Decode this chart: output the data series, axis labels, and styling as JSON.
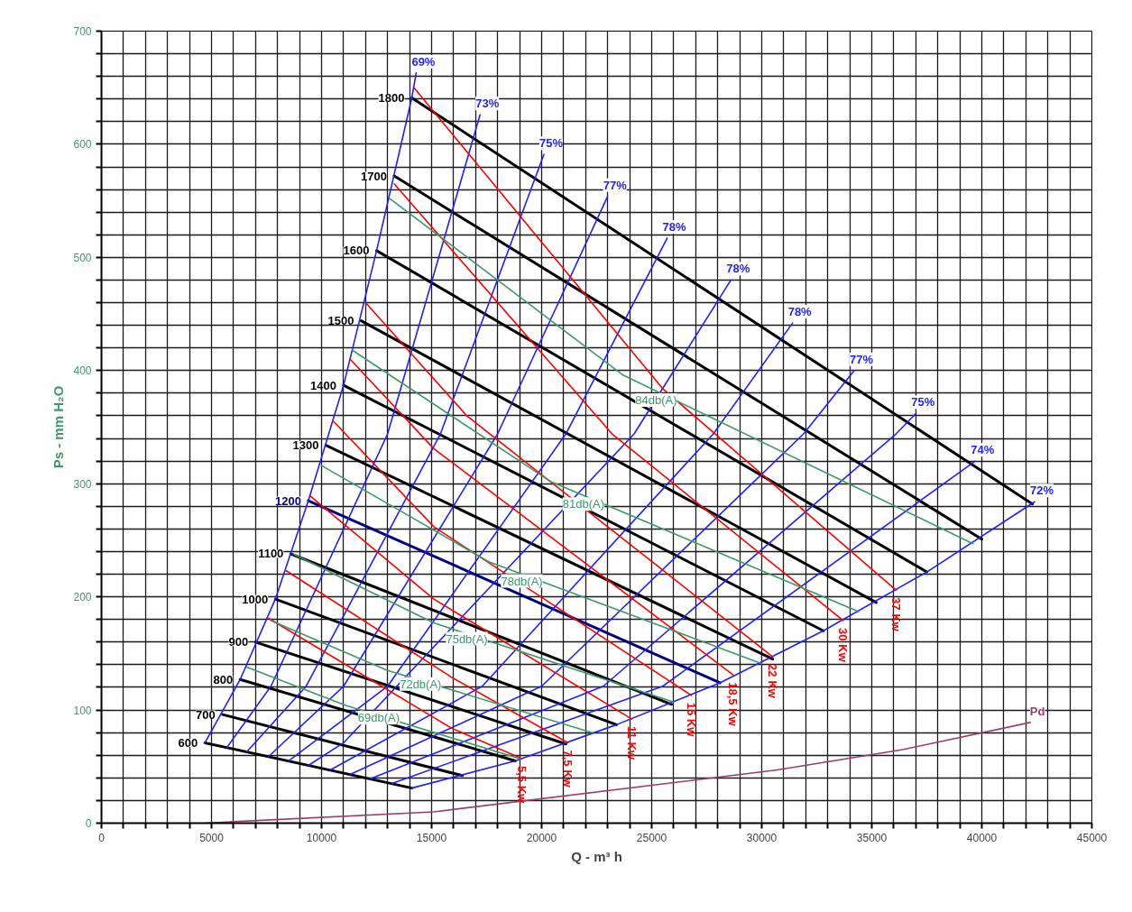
{
  "chart_data": {
    "type": "line",
    "xlabel": "Q - m³ h",
    "ylabel": "Ps - mm H₂O",
    "xlim": [
      0,
      45000
    ],
    "ylim": [
      0,
      700
    ],
    "xticks": [
      0,
      {
        "value": 1000,
        "label": null
      },
      {
        "value": 2000,
        "label": null
      },
      {
        "value": 3000,
        "label": null
      },
      {
        "value": 4000,
        "label": null
      },
      5000,
      {
        "value": 6000,
        "label": null
      },
      {
        "value": 7000,
        "label": null
      },
      {
        "value": 8000,
        "label": null
      },
      {
        "value": 9000,
        "label": null
      },
      10000,
      {
        "value": 11000,
        "label": null
      },
      {
        "value": 12000,
        "label": null
      },
      {
        "value": 13000,
        "label": null
      },
      {
        "value": 14000,
        "label": null
      },
      15000,
      {
        "value": 16000,
        "label": null
      },
      {
        "value": 17000,
        "label": null
      },
      {
        "value": 18000,
        "label": null
      },
      {
        "value": 19000,
        "label": null
      },
      20000,
      {
        "value": 21000,
        "label": null
      },
      {
        "value": 22000,
        "label": null
      },
      {
        "value": 23000,
        "label": null
      },
      {
        "value": 24000,
        "label": null
      },
      25000,
      {
        "value": 26000,
        "label": null
      },
      {
        "value": 27000,
        "label": null
      },
      {
        "value": 28000,
        "label": null
      },
      {
        "value": 29000,
        "label": null
      },
      30000,
      {
        "value": 31000,
        "label": null
      },
      {
        "value": 32000,
        "label": null
      },
      {
        "value": 33000,
        "label": null
      },
      {
        "value": 34000,
        "label": null
      },
      35000,
      {
        "value": 36000,
        "label": null
      },
      {
        "value": 37000,
        "label": null
      },
      {
        "value": 38000,
        "label": null
      },
      {
        "value": 39000,
        "label": null
      },
      40000,
      {
        "value": 41000,
        "label": null
      },
      {
        "value": 42000,
        "label": null
      },
      {
        "value": 43000,
        "label": null
      },
      {
        "value": 44000,
        "label": null
      },
      45000
    ],
    "yticks": [
      0,
      {
        "value": 20,
        "label": null
      },
      {
        "value": 40,
        "label": null
      },
      {
        "value": 60,
        "label": null
      },
      {
        "value": 80,
        "label": null
      },
      100,
      {
        "value": 120,
        "label": null
      },
      {
        "value": 140,
        "label": null
      },
      {
        "value": 160,
        "label": null
      },
      {
        "value": 180,
        "label": null
      },
      200,
      {
        "value": 220,
        "label": null
      },
      {
        "value": 240,
        "label": null
      },
      {
        "value": 260,
        "label": null
      },
      {
        "value": 280,
        "label": null
      },
      300,
      {
        "value": 320,
        "label": null
      },
      {
        "value": 340,
        "label": null
      },
      {
        "value": 360,
        "label": null
      },
      {
        "value": 380,
        "label": null
      },
      400,
      {
        "value": 420,
        "label": null
      },
      {
        "value": 440,
        "label": null
      },
      {
        "value": 460,
        "label": null
      },
      {
        "value": 480,
        "label": null
      },
      500,
      {
        "value": 520,
        "label": null
      },
      {
        "value": 540,
        "label": null
      },
      {
        "value": 560,
        "label": null
      },
      {
        "value": 580,
        "label": null
      },
      600,
      {
        "value": 620,
        "label": null
      },
      {
        "value": 640,
        "label": null
      },
      {
        "value": 660,
        "label": null
      },
      {
        "value": 680,
        "label": null
      },
      700
    ],
    "grid": true,
    "series": [
      {
        "name": "600",
        "color": "#000000",
        "x": [
          4700,
          14100
        ],
        "values": [
          71,
          31
        ]
      },
      {
        "name": "700",
        "color": "#000000",
        "x": [
          5500,
          16400
        ],
        "values": [
          96,
          42
        ]
      },
      {
        "name": "800",
        "color": "#000000",
        "x": [
          6300,
          18800
        ],
        "values": [
          127,
          55
        ]
      },
      {
        "name": "900",
        "color": "#000000",
        "x": [
          7000,
          21100
        ],
        "values": [
          160,
          70
        ]
      },
      {
        "name": "1000",
        "color": "#000000",
        "x": [
          7900,
          23400
        ],
        "values": [
          198,
          87
        ]
      },
      {
        "name": "1100",
        "color": "#000000",
        "x": [
          8600,
          25900
        ],
        "values": [
          238,
          105
        ]
      },
      {
        "name": "1200",
        "color": "#000080",
        "x": [
          9400,
          28100
        ],
        "values": [
          285,
          124
        ]
      },
      {
        "name": "1300",
        "color": "#000000",
        "x": [
          10200,
          30500
        ],
        "values": [
          334,
          145
        ]
      },
      {
        "name": "1400",
        "color": "#000000",
        "x": [
          11000,
          32800
        ],
        "values": [
          387,
          170
        ]
      },
      {
        "name": "1500",
        "color": "#000000",
        "x": [
          11800,
          35200
        ],
        "values": [
          444,
          195
        ]
      },
      {
        "name": "1600",
        "color": "#000000",
        "x": [
          12500,
          37500
        ],
        "values": [
          506,
          222
        ]
      },
      {
        "name": "1700",
        "color": "#000000",
        "x": [
          13300,
          40000
        ],
        "values": [
          572,
          251
        ]
      },
      {
        "name": "1800",
        "color": "#000000",
        "x": [
          14100,
          42300
        ],
        "values": [
          641,
          282
        ]
      },
      {
        "name": "69%",
        "color": "#1f1fff",
        "x": [
          4700,
          6300,
          7900,
          9400,
          11000,
          12500,
          14100,
          14300
        ],
        "values": [
          71,
          127,
          198,
          285,
          387,
          506,
          641,
          663
        ]
      },
      {
        "name": "73%",
        "color": "#1f1fff",
        "x": [
          5700,
          7700,
          13000,
          17200
        ],
        "values": [
          67,
          121,
          344,
          626
        ]
      },
      {
        "name": "75%",
        "color": "#1f1fff",
        "x": [
          6600,
          9300,
          15400,
          20100
        ],
        "values": [
          63,
          121,
          344,
          591
        ]
      },
      {
        "name": "77%",
        "color": "#1f1fff",
        "x": [
          7600,
          11000,
          18000,
          23000
        ],
        "values": [
          59,
          121,
          344,
          554
        ]
      },
      {
        "name": "78%",
        "color": "#1f1fff",
        "x": [
          8500,
          13000,
          21100,
          25700
        ],
        "values": [
          55,
          121,
          344,
          517
        ]
      },
      {
        "name": "78%",
        "color": "#1f1fff",
        "x": [
          9400,
          11000,
          24200,
          28600
        ],
        "values": [
          51,
          71,
          344,
          480
        ]
      },
      {
        "name": "78%",
        "color": "#1f1fff",
        "x": [
          10400,
          17300,
          27800,
          31400
        ],
        "values": [
          47,
          121,
          344,
          442
        ]
      },
      {
        "name": "77%",
        "color": "#1f1fff",
        "x": [
          11300,
          20000,
          31900,
          34200
        ],
        "values": [
          43,
          121,
          344,
          400
        ]
      },
      {
        "name": "75%",
        "color": "#1f1fff",
        "x": [
          12200,
          22800,
          36100,
          37000
        ],
        "values": [
          39,
          121,
          344,
          362
        ]
      },
      {
        "name": "74%",
        "color": "#1f1fff",
        "x": [
          13200,
          25500,
          39700
        ],
        "values": [
          35,
          121,
          320
        ]
      },
      {
        "name": "72%",
        "color": "#1f1fff",
        "x": [
          14100,
          18800,
          23400,
          28100,
          32800,
          37500,
          42400
        ],
        "values": [
          31,
          55,
          87,
          124,
          170,
          222,
          284
        ]
      },
      {
        "name": "5,5 Kw",
        "color": "#ff0000",
        "x": [
          7600,
          15900,
          19100
        ],
        "values": [
          181,
          84,
          57
        ]
      },
      {
        "name": "7,5 Kw",
        "color": "#ff0000",
        "x": [
          8400,
          15900,
          21200
        ],
        "values": [
          223,
          129,
          71
        ]
      },
      {
        "name": "11 Kw",
        "color": "#ff0000",
        "x": [
          9500,
          15100,
          24100
        ],
        "values": [
          289,
          198,
          92
        ]
      },
      {
        "name": "15 Kw",
        "color": "#ff0000",
        "x": [
          10500,
          15100,
          26800
        ],
        "values": [
          356,
          262,
          113
        ]
      },
      {
        "name": "18,5 Kw",
        "color": "#ff0000",
        "x": [
          11300,
          15100,
          28700
        ],
        "values": [
          410,
          331,
          131
        ]
      },
      {
        "name": "22 Kw",
        "color": "#ff0000",
        "x": [
          12000,
          16600,
          30500
        ],
        "values": [
          460,
          360,
          147
        ]
      },
      {
        "name": "30 Kw",
        "color": "#ff0000",
        "x": [
          13300,
          23200,
          33700
        ],
        "values": [
          565,
          344,
          179
        ]
      },
      {
        "name": "37 Kw",
        "color": "#ff0000",
        "x": [
          14200,
          25500,
          36100
        ],
        "values": [
          650,
          384,
          206
        ]
      },
      {
        "color": "#3a9a6a",
        "x": [
          6600,
          11100,
          19000
        ],
        "values": [
          138,
          104,
          57
        ]
      },
      {
        "color": "#3a9a6a",
        "x": [
          7700,
          13000,
          22300
        ],
        "values": [
          179,
          135,
          80
        ]
      },
      {
        "color": "#3a9a6a",
        "x": [
          8700,
          15100,
          26000
        ],
        "values": [
          238,
          177,
          107
        ]
      },
      {
        "color": "#3a9a6a",
        "x": [
          10000,
          17600,
          30000
        ],
        "values": [
          316,
          231,
          141
        ]
      },
      {
        "color": "#3a9a6a",
        "x": [
          11400,
          20400,
          34400
        ],
        "values": [
          418,
          302,
          187
        ]
      },
      {
        "color": "#3a9a6a",
        "x": [
          13100,
          23700,
          39600
        ],
        "values": [
          552,
          396,
          247
        ]
      },
      {
        "name": "Pd",
        "color": "#9b3c6e",
        "x": [
          4700,
          15100,
          30700,
          36400,
          42200
        ],
        "values": [
          0,
          10,
          47,
          65,
          89
        ]
      }
    ],
    "annotations": [
      {
        "text": "69db(A)",
        "x": 12600,
        "y": 93
      },
      {
        "text": "72db(A)",
        "x": 14500,
        "y": 123
      },
      {
        "text": "75db(A)",
        "x": 16600,
        "y": 163
      },
      {
        "text": "78db(A)",
        "x": 19100,
        "y": 214
      },
      {
        "text": "81db(A)",
        "x": 21900,
        "y": 282
      },
      {
        "text": "84db(A)",
        "x": 25200,
        "y": 374
      }
    ]
  }
}
